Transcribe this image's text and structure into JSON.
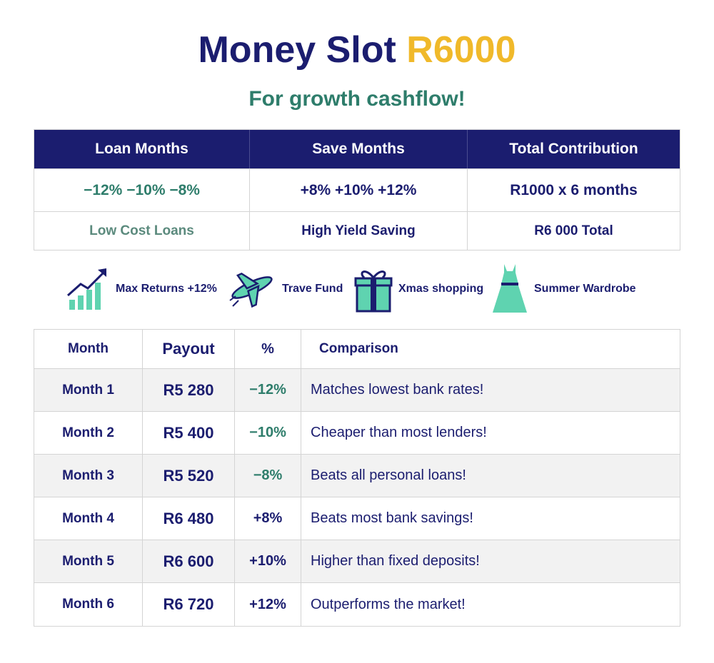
{
  "header": {
    "title": "Money Slot",
    "title_amount": "R6000",
    "subtitle": "For growth cashflow!"
  },
  "summary_table": {
    "columns": [
      "Loan Months",
      "Save Months",
      "Total Contribution"
    ],
    "rows": [
      [
        "−12% −10% −8%",
        "+8% +10% +12%",
        "R1000 x 6 months"
      ],
      [
        "Low Cost Loans",
        "High Yield Saving",
        "R6 000 Total"
      ]
    ]
  },
  "features": [
    {
      "label": "Max Returns +12%"
    },
    {
      "label": "Trave Fund"
    },
    {
      "label": "Xmas shopping"
    },
    {
      "label": "Summer Wardrobe"
    }
  ],
  "payout_table": {
    "columns": [
      "Month",
      "Payout",
      "%",
      "Comparison"
    ],
    "rows": [
      [
        "Month 1",
        "R5 280",
        "−12%",
        "Matches lowest bank rates!"
      ],
      [
        "Month 2",
        "R5 400",
        "−10%",
        "Cheaper than most lenders!"
      ],
      [
        "Month 3",
        "R5 520",
        "−8%",
        "Beats all personal loans!"
      ],
      [
        "Month 4",
        "R6 480",
        "+8%",
        "Beats most bank savings!"
      ],
      [
        "Month 5",
        "R6 600",
        "+10%",
        "Higher than fixed deposits!"
      ],
      [
        "Month 6",
        "R6 720",
        "+12%",
        "Outperforms the market!"
      ]
    ]
  }
}
